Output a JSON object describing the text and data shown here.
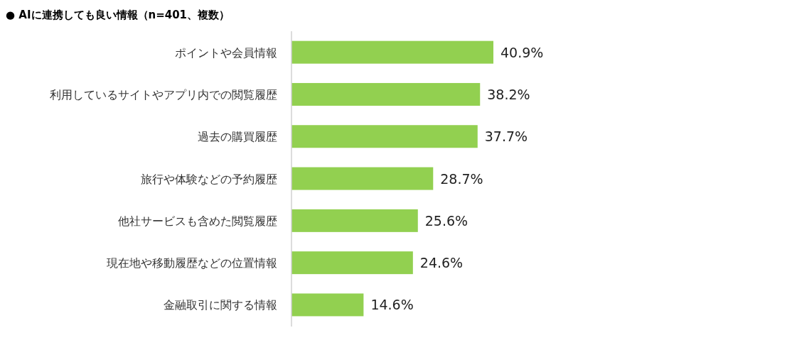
{
  "chart_data": {
    "type": "bar",
    "orientation": "horizontal",
    "title": "● AIに連携しても良い情報（n=401、複数）",
    "categories": [
      "ポイントや会員情報",
      "利用しているサイトやアプリ内での閲覧履歴",
      "過去の購買履歴",
      "旅行や体験などの予約履歴",
      "他社サービスも含めた閲覧履歴",
      "現在地や移動履歴などの位置情報",
      "金融取引に関する情報"
    ],
    "values": [
      40.9,
      38.2,
      37.7,
      28.7,
      25.6,
      24.6,
      14.6
    ],
    "value_labels": [
      "40.9%",
      "38.2%",
      "37.7%",
      "28.7%",
      "25.6%",
      "24.6%",
      "14.6%"
    ],
    "color": "#92d050",
    "xlim": [
      0,
      40.9
    ],
    "tick_labels": "y"
  }
}
